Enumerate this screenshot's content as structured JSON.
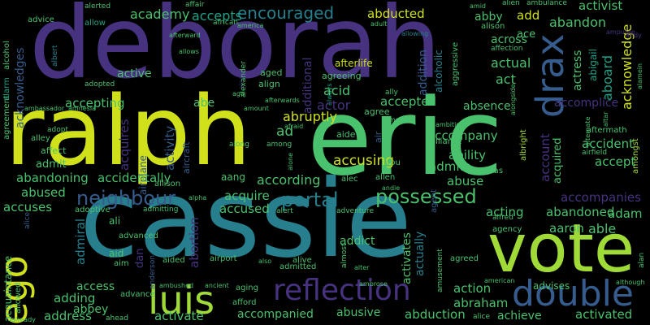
{
  "palette": {
    "background": "#000000",
    "violet": "#46327e",
    "indigo": "#3b528b",
    "blue": "#365c8d",
    "teal": "#277f8e",
    "cyan": "#1fa187",
    "green": "#4ac16d",
    "lime": "#a0da39",
    "yellow": "#d0e11c",
    "purple": "#440154"
  },
  "words": {
    "deborah": "deborah",
    "ralph": "ralph",
    "eric": "eric",
    "cassie": "cassie",
    "vote": "vote",
    "ego": "ego",
    "double": "double",
    "drax": "drax",
    "luis": "luis",
    "reflection": "reflection",
    "possessed": "possessed",
    "neighbour": "neighbour",
    "portal": "portal",
    "encouraged": "encouraged",
    "abducted": "abducted",
    "academy": "academy",
    "accepts": "accepts",
    "abandon": "abandon",
    "across": "across",
    "accepting": "accepting",
    "acquires": "acquires",
    "accepted": "accepted",
    "absence": "absence",
    "accomplice": "accomplice",
    "accident": "accident",
    "accept": "accept",
    "accompany": "accompany",
    "accusing": "accusing",
    "admits": "admits",
    "accidentally": "accidentally",
    "abandoning": "abandoning",
    "according": "according",
    "accused": "accused",
    "acquire": "acquire",
    "abused": "abused",
    "accuses": "accuses",
    "abuse": "abuse",
    "acting": "acting",
    "abandoned": "abandoned",
    "accompanies": "accompanies",
    "adam": "adam",
    "aaron": "aaron",
    "able": "able",
    "addict": "addict",
    "activates": "activates",
    "actually": "actually",
    "abortion": "abortion",
    "admiral": "admiral",
    "access": "access",
    "adding": "adding",
    "abbey": "abbey",
    "address": "address",
    "activate": "activate",
    "accompanied": "accompanied",
    "abusive": "abusive",
    "abduction": "abduction",
    "achieve": "achieve",
    "activated": "activated",
    "abraham": "abraham",
    "action": "action",
    "advises": "advises",
    "acknowledge": "acknowledge",
    "aboard": "aboard",
    "actress": "actress",
    "abigail": "abigail",
    "actual": "actual",
    "act": "act",
    "ace": "ace",
    "add": "add",
    "abby": "abby",
    "activist": "activist",
    "alien": "alien",
    "ambulance": "ambulance",
    "alison": "alison",
    "addition": "addition",
    "additional": "additional",
    "acid": "acid",
    "actor": "actor",
    "abruptly": "abruptly",
    "agree": "agree",
    "abe": "abe",
    "active": "active",
    "afterlife": "afterlife",
    "aged": "aged",
    "align": "align",
    "agreeing": "agreeing",
    "aggressive": "aggressive",
    "alcoholic": "alcoholic",
    "ability": "ability",
    "alliance": "alliance",
    "alex": "alex",
    "account": "account",
    "acquired": "acquired",
    "ad": "ad",
    "aide": "aide",
    "air": "air",
    "alec": "alec",
    "allen": "allen",
    "aang": "aang",
    "allison": "allison",
    "activity": "activity",
    "aircraft": "aircraft",
    "admit": "admit",
    "affect": "affect",
    "adopt": "adopt",
    "alley": "alley",
    "airplane": "airplane",
    "along": "along",
    "amongst": "amongst",
    "abu": "abu",
    "abuse_small": "abducts",
    "alerted": "alerted",
    "affair": "affair",
    "african": "african",
    "afterward": "afterward",
    "allow": "allow",
    "advice": "advice",
    "alcohol": "alcohol",
    "acknowledges": "acknowledges",
    "albert": "albert",
    "adopted": "adopted",
    "allows": "allows",
    "alexander": "alexander",
    "ago": "ago",
    "afterwards": "afterwards",
    "amount": "amount",
    "afraid": "afraid",
    "ambassador": "ambassador",
    "amnesia": "amnesia",
    "alarm": "alarm",
    "agreement": "agreement",
    "ally": "ally",
    "among": "among",
    "amends": "amends",
    "ambition": "ambition",
    "aftermath": "aftermath",
    "airfield": "airfield",
    "alternate": "alternate",
    "albright": "albright",
    "alias": "alias",
    "agent": "agent",
    "andie": "andie",
    "alert": "alert",
    "adventure": "adventure",
    "alfred": "alfred",
    "agency": "agency",
    "alan": "alan",
    "allowed": "allowed",
    "acquaintance": "acquaintance",
    "adoptive": "adoptive",
    "ali": "ali",
    "aid": "aid",
    "aim": "aim",
    "advanced": "advanced",
    "aided": "aided",
    "dan": "dan",
    "anderson": "anderson",
    "airport": "airport",
    "alive": "alive",
    "admitted": "admitted",
    "admitting": "admitting",
    "alpha": "alpha",
    "ambushed": "ambushed",
    "ancient": "ancient",
    "aging": "aging",
    "afford": "afford",
    "advance": "advance",
    "ahead": "ahead",
    "already": "already",
    "also": "also",
    "almost": "almost",
    "alter": "alter",
    "ambrose": "ambrose",
    "amusement": "amusement",
    "agreed": "agreed",
    "american": "american",
    "alice": "alice",
    "although": "although",
    "allowing": "allowing",
    "adult": "adult",
    "america": "america",
    "amid": "amid",
    "affection": "affection",
    "alamein": "alamein",
    "altar": "altar",
    "alongside": "alongside",
    "always": "always",
    "alone": "alone",
    "alaska": "alaska",
    "andy": "andy",
    "amputee": "amputee"
  }
}
